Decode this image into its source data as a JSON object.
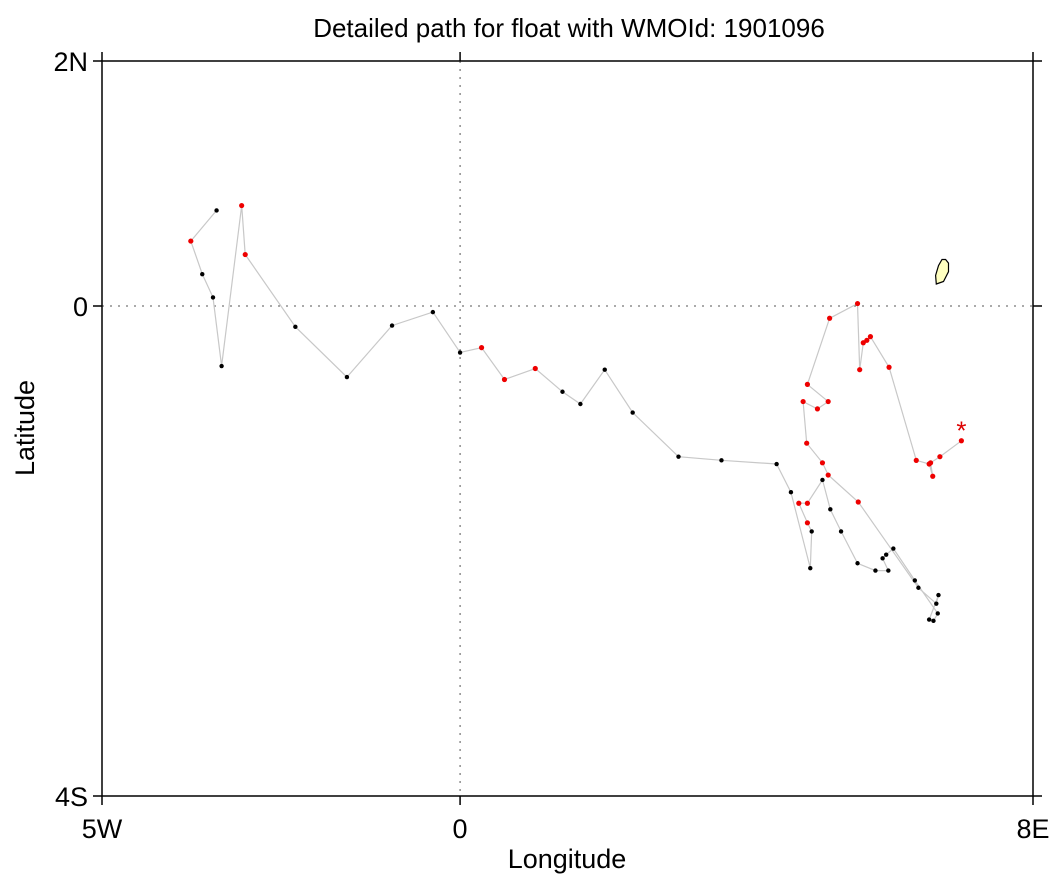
{
  "title": "Detailed path for float with WMOId: 1901096",
  "axes": {
    "xlabel": "Longitude",
    "ylabel": "Latitude",
    "x_ticks": [
      {
        "value": -5,
        "label": "5W"
      },
      {
        "value": 0,
        "label": "0"
      },
      {
        "value": 8,
        "label": "8E"
      }
    ],
    "y_ticks": [
      {
        "value": 2,
        "label": "2N"
      },
      {
        "value": 0,
        "label": "0"
      },
      {
        "value": -4,
        "label": "4S"
      }
    ]
  },
  "colors": {
    "track_line": "#c8c8c8",
    "black_point": "#000000",
    "red_point": "#ee0000",
    "island_fill": "#ffffc0",
    "final_marker": "#dd0000"
  },
  "chart_data": {
    "type": "scatter",
    "xlim": [
      -5,
      8
    ],
    "ylim": [
      -4,
      2
    ],
    "grid_zero_lines": true,
    "final_position_marker": {
      "lon": 7.0,
      "lat": -1.0,
      "symbol": "*"
    },
    "island": {
      "name": "",
      "outline": [
        [
          6.65,
          0.18
        ],
        [
          6.75,
          0.2
        ],
        [
          6.82,
          0.28
        ],
        [
          6.82,
          0.35
        ],
        [
          6.78,
          0.38
        ],
        [
          6.73,
          0.38
        ],
        [
          6.68,
          0.33
        ],
        [
          6.64,
          0.25
        ]
      ]
    },
    "track": [
      {
        "lon": 7.0,
        "lat": -1.1,
        "c": "red"
      },
      {
        "lon": 6.7,
        "lat": -1.23,
        "c": "red"
      },
      {
        "lon": 6.57,
        "lat": -1.28,
        "c": "red"
      },
      {
        "lon": 6.6,
        "lat": -1.39,
        "c": "red"
      },
      {
        "lon": 6.55,
        "lat": -1.29,
        "c": "red"
      },
      {
        "lon": 6.37,
        "lat": -1.26,
        "c": "red"
      },
      {
        "lon": 5.99,
        "lat": -0.5,
        "c": "red"
      },
      {
        "lon": 5.73,
        "lat": -0.25,
        "c": "red"
      },
      {
        "lon": 5.68,
        "lat": -0.28,
        "c": "red"
      },
      {
        "lon": 5.63,
        "lat": -0.3,
        "c": "red"
      },
      {
        "lon": 5.58,
        "lat": -0.52,
        "c": "red"
      },
      {
        "lon": 5.55,
        "lat": 0.02,
        "c": "red"
      },
      {
        "lon": 5.16,
        "lat": -0.1,
        "c": "red"
      },
      {
        "lon": 4.85,
        "lat": -0.64,
        "c": "red"
      },
      {
        "lon": 5.14,
        "lat": -0.78,
        "c": "red"
      },
      {
        "lon": 4.99,
        "lat": -0.84,
        "c": "red"
      },
      {
        "lon": 4.79,
        "lat": -0.78,
        "c": "red"
      },
      {
        "lon": 4.84,
        "lat": -1.12,
        "c": "red"
      },
      {
        "lon": 5.06,
        "lat": -1.28,
        "c": "red"
      },
      {
        "lon": 5.14,
        "lat": -1.38,
        "c": "red"
      },
      {
        "lon": 5.56,
        "lat": -1.6,
        "c": "red"
      },
      {
        "lon": 6.4,
        "lat": -2.3,
        "c": "black"
      },
      {
        "lon": 6.65,
        "lat": -2.43,
        "c": "black"
      },
      {
        "lon": 6.68,
        "lat": -2.36,
        "c": "black"
      },
      {
        "lon": 6.55,
        "lat": -2.56,
        "c": "black"
      },
      {
        "lon": 6.61,
        "lat": -2.57,
        "c": "black"
      },
      {
        "lon": 6.67,
        "lat": -2.51,
        "c": "black"
      },
      {
        "lon": 6.35,
        "lat": -2.24,
        "c": "black"
      },
      {
        "lon": 6.05,
        "lat": -1.98,
        "c": "black"
      },
      {
        "lon": 5.95,
        "lat": -2.03,
        "c": "black"
      },
      {
        "lon": 5.9,
        "lat": -2.06,
        "c": "black"
      },
      {
        "lon": 5.98,
        "lat": -2.16,
        "c": "black"
      },
      {
        "lon": 5.8,
        "lat": -2.16,
        "c": "black"
      },
      {
        "lon": 5.55,
        "lat": -2.1,
        "c": "black"
      },
      {
        "lon": 5.32,
        "lat": -1.84,
        "c": "black"
      },
      {
        "lon": 5.17,
        "lat": -1.66,
        "c": "black"
      },
      {
        "lon": 5.06,
        "lat": -1.42,
        "c": "black"
      },
      {
        "lon": 4.85,
        "lat": -1.61,
        "c": "red"
      },
      {
        "lon": 4.73,
        "lat": -1.61,
        "c": "red"
      },
      {
        "lon": 4.85,
        "lat": -1.77,
        "c": "red"
      },
      {
        "lon": 4.91,
        "lat": -1.84,
        "c": "black"
      },
      {
        "lon": 4.89,
        "lat": -2.14,
        "c": "black"
      },
      {
        "lon": 4.62,
        "lat": -1.52,
        "c": "black"
      },
      {
        "lon": 4.42,
        "lat": -1.29,
        "c": "black"
      },
      {
        "lon": 3.65,
        "lat": -1.26,
        "c": "black"
      },
      {
        "lon": 3.05,
        "lat": -1.23,
        "c": "black"
      },
      {
        "lon": 2.41,
        "lat": -0.87,
        "c": "black"
      },
      {
        "lon": 2.02,
        "lat": -0.52,
        "c": "black"
      },
      {
        "lon": 1.68,
        "lat": -0.8,
        "c": "black"
      },
      {
        "lon": 1.43,
        "lat": -0.7,
        "c": "black"
      },
      {
        "lon": 1.05,
        "lat": -0.51,
        "c": "red"
      },
      {
        "lon": 0.62,
        "lat": -0.6,
        "c": "red"
      },
      {
        "lon": 0.3,
        "lat": -0.34,
        "c": "red"
      },
      {
        "lon": 0.0,
        "lat": -0.38,
        "c": "black"
      },
      {
        "lon": -0.38,
        "lat": -0.05,
        "c": "black"
      },
      {
        "lon": -0.95,
        "lat": -0.16,
        "c": "black"
      },
      {
        "lon": -1.58,
        "lat": -0.58,
        "c": "black"
      },
      {
        "lon": -2.3,
        "lat": -0.17,
        "c": "black"
      },
      {
        "lon": -3.0,
        "lat": 0.42,
        "c": "red"
      },
      {
        "lon": -3.05,
        "lat": 0.82,
        "c": "red"
      },
      {
        "lon": -3.33,
        "lat": -0.49,
        "c": "black"
      },
      {
        "lon": -3.45,
        "lat": 0.07,
        "c": "black"
      },
      {
        "lon": -3.6,
        "lat": 0.26,
        "c": "black"
      },
      {
        "lon": -3.76,
        "lat": 0.53,
        "c": "red"
      },
      {
        "lon": -3.4,
        "lat": 0.78,
        "c": "black"
      }
    ]
  }
}
